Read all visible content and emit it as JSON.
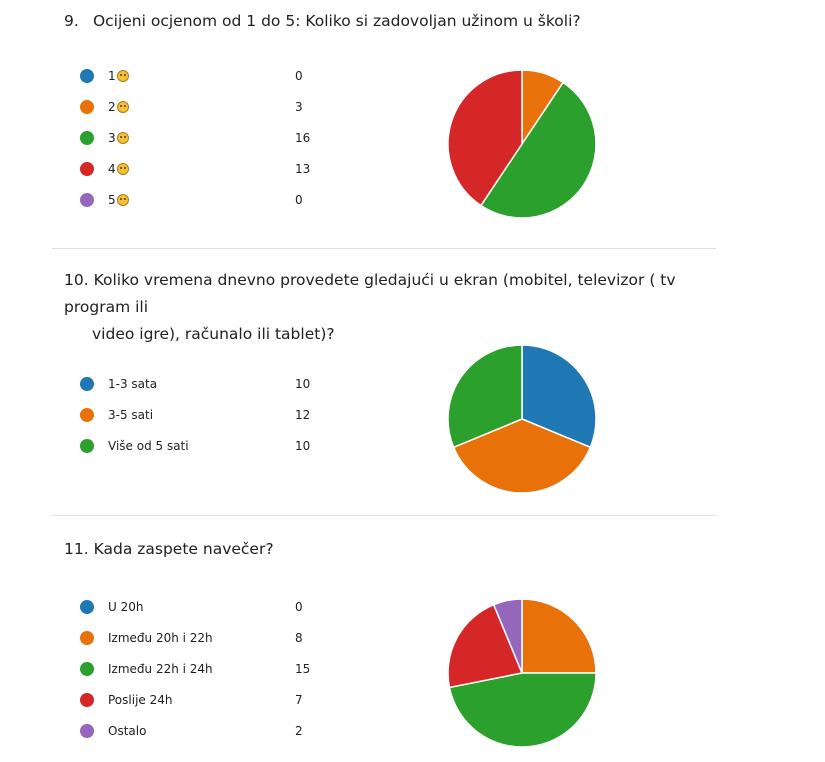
{
  "questions": [
    {
      "number": "9.",
      "title": "Ocijeni ocjenom od 1 do 5: Koliko si zadovoljan užinom u školi?",
      "options": [
        {
          "label": "1",
          "count": "0",
          "color": "#1f77b4",
          "emoji": "disappointed-face"
        },
        {
          "label": "2",
          "count": "3",
          "color": "#e8710a",
          "emoji": "slightly-frowning-face"
        },
        {
          "label": "3",
          "count": "16",
          "color": "#2ca02c",
          "emoji": "neutral-face"
        },
        {
          "label": "4",
          "count": "13",
          "color": "#d62728",
          "emoji": "smiling-face"
        },
        {
          "label": "5",
          "count": "0",
          "color": "#9467bd",
          "emoji": "grinning-face"
        }
      ]
    },
    {
      "number": "10.",
      "title": "Koliko vremena dnevno provedete gledajući u ekran (mobitel, televizor ( tv program ili video igre), računalo ili tablet)?",
      "title_line1": "Koliko vremena dnevno provedete gledajući u ekran (mobitel, televizor ( tv program ili",
      "title_line2": "video igre), računalo ili tablet)?",
      "options": [
        {
          "label": "1-3 sata",
          "count": "10",
          "color": "#1f77b4"
        },
        {
          "label": "3-5 sati",
          "count": "12",
          "color": "#e8710a"
        },
        {
          "label": "Više od 5 sati",
          "count": "10",
          "color": "#2ca02c"
        }
      ]
    },
    {
      "number": "11.",
      "title": "Kada zaspete navečer?",
      "options": [
        {
          "label": "U 20h",
          "count": "0",
          "color": "#1f77b4"
        },
        {
          "label": "Između 20h i 22h",
          "count": "8",
          "color": "#e8710a"
        },
        {
          "label": "Između 22h i 24h",
          "count": "15",
          "color": "#2ca02c"
        },
        {
          "label": "Poslije 24h",
          "count": "7",
          "color": "#d62728"
        },
        {
          "label": "Ostalo",
          "count": "2",
          "color": "#9467bd"
        }
      ]
    }
  ],
  "chart_data": [
    {
      "type": "pie",
      "title": "Ocijeni ocjenom od 1 do 5: Koliko si zadovoljan užinom u školi?",
      "categories": [
        "1",
        "2",
        "3",
        "4",
        "5"
      ],
      "values": [
        0,
        3,
        16,
        13,
        0
      ],
      "colors": [
        "#1f77b4",
        "#e8710a",
        "#2ca02c",
        "#d62728",
        "#9467bd"
      ]
    },
    {
      "type": "pie",
      "title": "Koliko vremena dnevno provedete gledajući u ekran (mobitel, televizor ( tv program ili video igre), računalo ili tablet)?",
      "categories": [
        "1-3 sata",
        "3-5 sati",
        "Više od 5 sati"
      ],
      "values": [
        10,
        12,
        10
      ],
      "colors": [
        "#1f77b4",
        "#e8710a",
        "#2ca02c"
      ]
    },
    {
      "type": "pie",
      "title": "Kada zaspete navečer?",
      "categories": [
        "U 20h",
        "Između 20h i 22h",
        "Između 22h i 24h",
        "Poslije 24h",
        "Ostalo"
      ],
      "values": [
        0,
        8,
        15,
        7,
        2
      ],
      "colors": [
        "#1f77b4",
        "#e8710a",
        "#2ca02c",
        "#d62728",
        "#9467bd"
      ]
    }
  ]
}
